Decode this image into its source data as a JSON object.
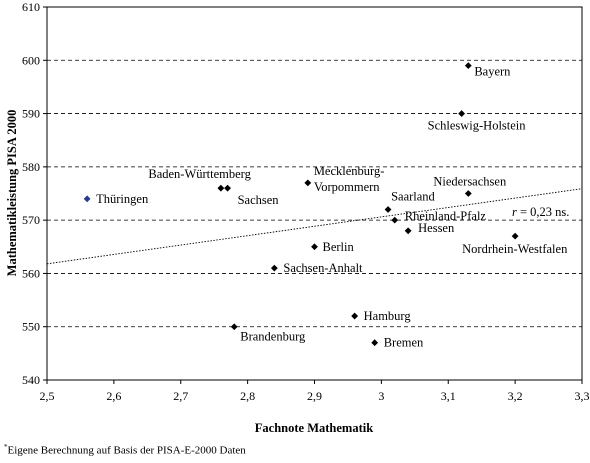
{
  "chart_data": {
    "type": "scatter",
    "xlabel": "Fachnote Mathematik",
    "ylabel": "Mathematikleistung PISA 2000",
    "xlim": [
      2.5,
      3.3
    ],
    "ylim": [
      540,
      610
    ],
    "x_ticks": [
      "2,5",
      "2,6",
      "2,7",
      "2,8",
      "2,9",
      "3",
      "3,1",
      "3,2",
      "3,3"
    ],
    "y_ticks": [
      "540",
      "550",
      "560",
      "570",
      "580",
      "590",
      "600",
      "610"
    ],
    "grid": "horizontal dashed",
    "points": [
      {
        "label": "Bayern",
        "x": 3.13,
        "y": 599
      },
      {
        "label": "Schleswig-Holstein",
        "x": 3.12,
        "y": 590
      },
      {
        "label": "Baden-Württemberg",
        "x": 2.76,
        "y": 576
      },
      {
        "label": "Sachsen",
        "x": 2.77,
        "y": 576
      },
      {
        "label": "Mecklenburg-Vorpommern",
        "x": 2.89,
        "y": 577
      },
      {
        "label": "Thüringen",
        "x": 2.56,
        "y": 574,
        "color": "#2b3a8c"
      },
      {
        "label": "Niedersachsen",
        "x": 3.13,
        "y": 575
      },
      {
        "label": "Saarland",
        "x": 3.01,
        "y": 572
      },
      {
        "label": "Rheinland-Pfalz",
        "x": 3.02,
        "y": 570
      },
      {
        "label": "Hessen",
        "x": 3.04,
        "y": 568
      },
      {
        "label": "Nordrhein-Westfalen",
        "x": 3.2,
        "y": 567
      },
      {
        "label": "Berlin",
        "x": 2.9,
        "y": 565
      },
      {
        "label": "Sachsen-Anhalt",
        "x": 2.84,
        "y": 561
      },
      {
        "label": "Hamburg",
        "x": 2.96,
        "y": 552
      },
      {
        "label": "Brandenburg",
        "x": 2.78,
        "y": 550
      },
      {
        "label": "Bremen",
        "x": 2.99,
        "y": 547
      }
    ],
    "trendline": {
      "x": [
        2.5,
        3.3
      ],
      "y": [
        561.8,
        575.9
      ]
    },
    "annotation": "r = 0,23 ns."
  },
  "footnote": {
    "mark": "*",
    "text": "Eigene Berechnung auf Basis der PISA-E-2000 Daten"
  }
}
